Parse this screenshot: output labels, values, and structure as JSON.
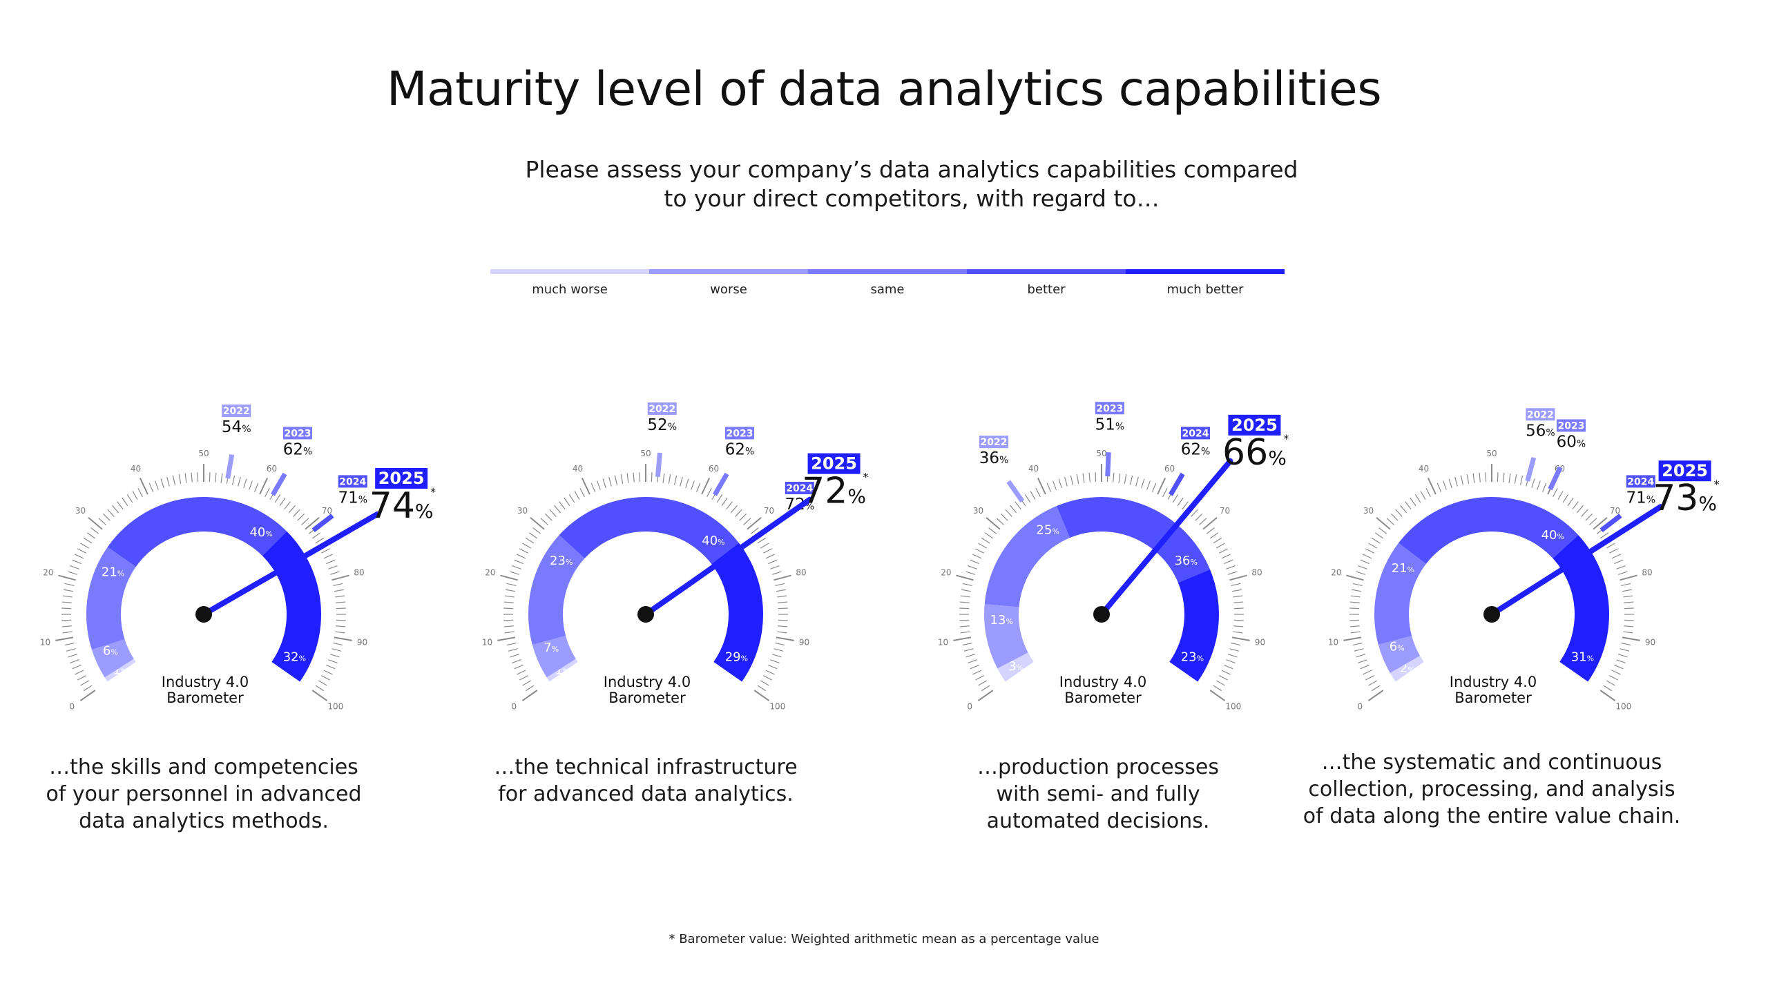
{
  "title": "Maturity level of data analytics capabilities",
  "subtitle": [
    "Please assess your company’s data analytics capabilities compared",
    "to your direct competitors, with regard to…"
  ],
  "scale": {
    "labels": [
      "much worse",
      "worse",
      "same",
      "better",
      "much better"
    ],
    "colors": [
      "#D4D4FF",
      "#9C9CFF",
      "#7A7AFF",
      "#5050FF",
      "#1F1FFF"
    ]
  },
  "colors": {
    "year_2022": "#9C9CFF",
    "year_2023": "#7A7AFF",
    "year_2024": "#5050FF",
    "year_2025": "#1F1FFF",
    "needle": "#1F1FFF",
    "tick": "#8a8a8a"
  },
  "percent_sign": "%",
  "gauge_center_label": [
    "Industry 4.0",
    "Barometer"
  ],
  "footnote": "* Barometer value: Weighted arithmetic mean as a percentage value",
  "chart_data": [
    {
      "type": "gauge",
      "caption": [
        "…the skills and competencies",
        "of your personnel in advanced",
        "data analytics methods."
      ],
      "axis_range": [
        0,
        100
      ],
      "axis_ticks": [
        "0",
        "10",
        "20",
        "30",
        "40",
        "50",
        "60",
        "70",
        "80",
        "90",
        "100"
      ],
      "distribution": [
        {
          "category": "much worse",
          "value": 1
        },
        {
          "category": "worse",
          "value": 6
        },
        {
          "category": "same",
          "value": 21
        },
        {
          "category": "better",
          "value": 40
        },
        {
          "category": "much better",
          "value": 32
        }
      ],
      "history": [
        {
          "year": "2022",
          "value": 54
        },
        {
          "year": "2023",
          "value": 62
        },
        {
          "year": "2024",
          "value": 71
        }
      ],
      "current": {
        "year": "2025",
        "value": 74
      }
    },
    {
      "type": "gauge",
      "caption": [
        "…the technical infrastructure",
        "for advanced data analytics."
      ],
      "axis_range": [
        0,
        100
      ],
      "axis_ticks": [
        "0",
        "10",
        "20",
        "30",
        "40",
        "50",
        "60",
        "70",
        "80",
        "90",
        "100"
      ],
      "distribution": [
        {
          "category": "much worse",
          "value": 1
        },
        {
          "category": "worse",
          "value": 7
        },
        {
          "category": "same",
          "value": 23
        },
        {
          "category": "better",
          "value": 40
        },
        {
          "category": "much better",
          "value": 29
        }
      ],
      "history": [
        {
          "year": "2022",
          "value": 52
        },
        {
          "year": "2023",
          "value": 62
        },
        {
          "year": "2024",
          "value": 72
        }
      ],
      "current": {
        "year": "2025",
        "value": 72
      }
    },
    {
      "type": "gauge",
      "caption": [
        "…production processes",
        "with semi- and fully",
        "automated decisions."
      ],
      "axis_range": [
        0,
        100
      ],
      "axis_ticks": [
        "0",
        "10",
        "20",
        "30",
        "40",
        "50",
        "60",
        "70",
        "80",
        "90",
        "100"
      ],
      "distribution": [
        {
          "category": "much worse",
          "value": 3
        },
        {
          "category": "worse",
          "value": 13
        },
        {
          "category": "same",
          "value": 25
        },
        {
          "category": "better",
          "value": 36
        },
        {
          "category": "much better",
          "value": 23
        }
      ],
      "history": [
        {
          "year": "2022",
          "value": 36
        },
        {
          "year": "2023",
          "value": 51
        },
        {
          "year": "2024",
          "value": 62
        }
      ],
      "current": {
        "year": "2025",
        "value": 66
      }
    },
    {
      "type": "gauge",
      "caption": [
        "…the systematic and continuous",
        "collection, processing, and analysis",
        "of data along the entire value chain."
      ],
      "axis_range": [
        0,
        100
      ],
      "axis_ticks": [
        "0",
        "10",
        "20",
        "30",
        "40",
        "50",
        "60",
        "70",
        "80",
        "90",
        "100"
      ],
      "distribution": [
        {
          "category": "much worse",
          "value": 2
        },
        {
          "category": "worse",
          "value": 6
        },
        {
          "category": "same",
          "value": 21
        },
        {
          "category": "better",
          "value": 40
        },
        {
          "category": "much better",
          "value": 31
        }
      ],
      "history": [
        {
          "year": "2022",
          "value": 56
        },
        {
          "year": "2023",
          "value": 60
        },
        {
          "year": "2024",
          "value": 71
        }
      ],
      "current": {
        "year": "2025",
        "value": 73
      }
    }
  ]
}
